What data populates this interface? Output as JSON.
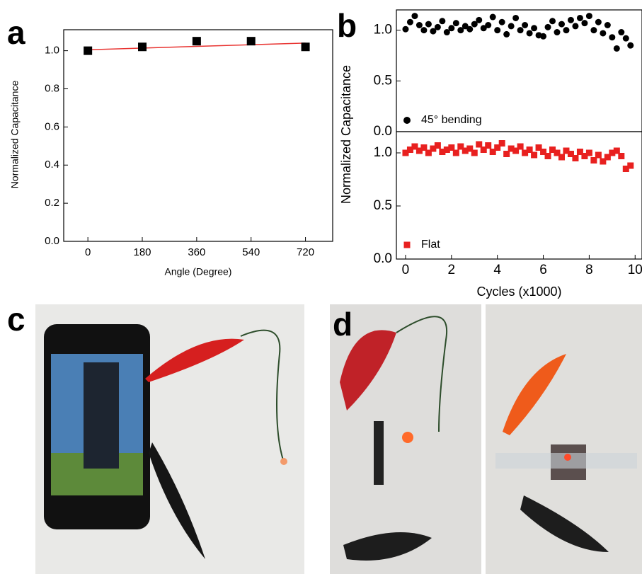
{
  "chart_data": [
    {
      "type": "scatter",
      "panel_label": "a",
      "xlabel": "Angle (Degree)",
      "ylabel": "Normalized Capacitance",
      "x": [
        0,
        180,
        360,
        540,
        720
      ],
      "values": [
        1.0,
        1.02,
        1.05,
        1.05,
        1.02
      ],
      "color": "#000000",
      "marker": "square",
      "fit": {
        "x": [
          0,
          720
        ],
        "values": [
          1.005,
          1.04
        ],
        "color": "#e8322f"
      },
      "xlim": [
        -80,
        810
      ],
      "xticks": [
        0,
        180,
        360,
        540,
        720
      ],
      "ylim": [
        0,
        1.11
      ],
      "yticks": [
        {
          "value": 0,
          "label": "0.0"
        },
        {
          "value": 0.2,
          "label": "0.2"
        },
        {
          "value": 0.4,
          "label": "0.4"
        },
        {
          "value": 0.6,
          "label": "0.6"
        },
        {
          "value": 0.8,
          "label": "0.8"
        },
        {
          "value": 1,
          "label": "1.0"
        }
      ]
    },
    {
      "type": "scatter",
      "panel_label": "b",
      "ylabel": "Normalized Capacitance",
      "legend": "45° bending",
      "x": [
        0,
        0.2,
        0.4,
        0.6,
        0.8,
        1,
        1.2,
        1.4,
        1.6,
        1.8,
        2,
        2.2,
        2.4,
        2.6,
        2.8,
        3,
        3.2,
        3.4,
        3.6,
        3.8,
        4,
        4.2,
        4.4,
        4.6,
        4.8,
        5,
        5.2,
        5.4,
        5.6,
        5.8,
        6,
        6.2,
        6.4,
        6.6,
        6.8,
        7,
        7.2,
        7.4,
        7.6,
        7.8,
        8,
        8.2,
        8.4,
        8.6,
        8.8,
        9,
        9.2,
        9.4,
        9.6,
        9.8
      ],
      "values": [
        1.01,
        1.08,
        1.14,
        1.05,
        1.0,
        1.06,
        0.99,
        1.03,
        1.09,
        0.98,
        1.02,
        1.07,
        1.0,
        1.04,
        1.01,
        1.06,
        1.1,
        1.02,
        1.05,
        1.13,
        1.0,
        1.08,
        0.96,
        1.04,
        1.12,
        1.0,
        1.05,
        0.97,
        1.02,
        0.95,
        0.94,
        1.03,
        1.09,
        0.98,
        1.06,
        1.0,
        1.1,
        1.04,
        1.12,
        1.07,
        1.14,
        1.0,
        1.08,
        0.97,
        1.05,
        0.93,
        0.82,
        0.98,
        0.92,
        0.85
      ],
      "color": "#000000",
      "marker": "circle",
      "xlim": [
        -0.4,
        10.3
      ],
      "ylim": [
        0,
        1.2
      ],
      "yticks": [
        {
          "value": 0,
          "label": "0.0"
        },
        0.5,
        {
          "value": 1,
          "label": "1.0"
        }
      ]
    },
    {
      "type": "scatter",
      "xlabel": "Cycles (x1000)",
      "legend": "Flat",
      "x": [
        0,
        0.2,
        0.4,
        0.6,
        0.8,
        1,
        1.2,
        1.4,
        1.6,
        1.8,
        2,
        2.2,
        2.4,
        2.6,
        2.8,
        3,
        3.2,
        3.4,
        3.6,
        3.8,
        4,
        4.2,
        4.4,
        4.6,
        4.8,
        5,
        5.2,
        5.4,
        5.6,
        5.8,
        6,
        6.2,
        6.4,
        6.6,
        6.8,
        7,
        7.2,
        7.4,
        7.6,
        7.8,
        8,
        8.2,
        8.4,
        8.6,
        8.8,
        9,
        9.2,
        9.4,
        9.6,
        9.8
      ],
      "values": [
        1.0,
        1.03,
        1.06,
        1.02,
        1.05,
        1.0,
        1.04,
        1.07,
        1.01,
        1.03,
        1.05,
        1.0,
        1.06,
        1.02,
        1.04,
        1.0,
        1.08,
        1.03,
        1.07,
        1.01,
        1.05,
        1.09,
        0.99,
        1.04,
        1.02,
        1.06,
        1.0,
        1.03,
        0.98,
        1.05,
        1.01,
        0.97,
        1.03,
        1.0,
        0.96,
        1.02,
        0.99,
        0.95,
        1.01,
        0.97,
        1.0,
        0.93,
        0.98,
        0.92,
        0.96,
        1.0,
        1.02,
        0.97,
        0.85,
        0.88
      ],
      "color": "#e8201f",
      "marker": "square",
      "xlim": [
        -0.4,
        10.3
      ],
      "xticks": [
        0,
        2,
        4,
        6,
        8,
        10
      ],
      "ylim": [
        0,
        1.2
      ],
      "yticks": [
        {
          "value": 0,
          "label": "0.0"
        },
        0.5,
        {
          "value": 1,
          "label": "1.0"
        }
      ]
    }
  ],
  "photos": [
    {
      "label": "c"
    },
    {
      "label": "d"
    }
  ]
}
